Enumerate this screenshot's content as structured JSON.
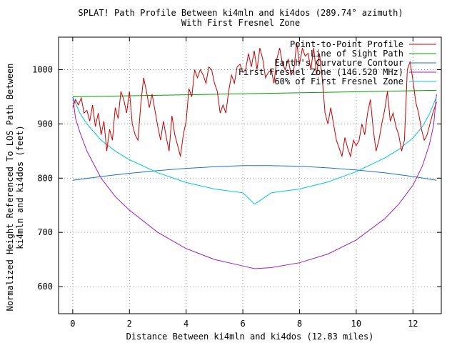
{
  "chart_data": {
    "type": "line",
    "title": "SPLAT! Path Profile Between ki4mln and ki4dos (289.74° azimuth)",
    "subtitle": "With First Fresnel Zone",
    "xlabel": "Distance Between ki4mln and ki4dos (12.83 miles)",
    "ylabel_line1": "Normalized Height Referenced To LOS Path Between",
    "ylabel_line2": "ki4mln and ki4dos (feet)",
    "xlim": [
      -0.5,
      13.0
    ],
    "ylim": [
      550,
      1060
    ],
    "xticks": [
      0,
      2,
      4,
      6,
      8,
      10,
      12
    ],
    "yticks": [
      600,
      700,
      800,
      900,
      1000
    ],
    "grid": true,
    "legend_position": "top-right",
    "series": [
      {
        "name": "Point-to-Point Profile",
        "color": "#cc0000",
        "x": [
          0,
          0.1,
          0.2,
          0.3,
          0.4,
          0.5,
          0.6,
          0.7,
          0.8,
          0.9,
          1.0,
          1.1,
          1.2,
          1.3,
          1.4,
          1.5,
          1.6,
          1.7,
          1.8,
          1.9,
          2.0,
          2.1,
          2.2,
          2.3,
          2.4,
          2.5,
          2.6,
          2.7,
          2.8,
          2.9,
          3.0,
          3.1,
          3.2,
          3.3,
          3.4,
          3.5,
          3.6,
          3.7,
          3.8,
          3.9,
          4.0,
          4.1,
          4.2,
          4.3,
          4.4,
          4.5,
          4.6,
          4.7,
          4.8,
          4.9,
          5.0,
          5.1,
          5.2,
          5.3,
          5.4,
          5.5,
          5.6,
          5.7,
          5.8,
          5.9,
          6.0,
          6.1,
          6.2,
          6.3,
          6.4,
          6.5,
          6.6,
          6.7,
          6.8,
          6.9,
          7.0,
          7.1,
          7.2,
          7.3,
          7.4,
          7.5,
          7.6,
          7.7,
          7.8,
          7.9,
          8.0,
          8.1,
          8.2,
          8.3,
          8.4,
          8.5,
          8.6,
          8.7,
          8.8,
          8.9,
          9.0,
          9.1,
          9.2,
          9.3,
          9.4,
          9.5,
          9.6,
          9.7,
          9.8,
          9.9,
          10.0,
          10.1,
          10.2,
          10.3,
          10.4,
          10.5,
          10.6,
          10.7,
          10.8,
          10.9,
          11.0,
          11.1,
          11.2,
          11.3,
          11.4,
          11.5,
          11.6,
          11.7,
          11.8,
          11.9,
          12.0,
          12.1,
          12.2,
          12.3,
          12.4,
          12.5,
          12.6,
          12.7,
          12.83
        ],
        "y": [
          930,
          945,
          935,
          948,
          920,
          925,
          905,
          935,
          895,
          920,
          880,
          905,
          850,
          890,
          870,
          930,
          910,
          960,
          945,
          920,
          960,
          900,
          880,
          870,
          935,
          985,
          960,
          930,
          955,
          925,
          895,
          870,
          905,
          875,
          850,
          915,
          880,
          860,
          840,
          880,
          905,
          965,
          950,
          1000,
          985,
          1000,
          990,
          975,
          1005,
          1000,
          975,
          960,
          920,
          935,
          920,
          960,
          990,
          975,
          1005,
          1010,
          995,
          1000,
          1030,
          1005,
          1035,
          1000,
          1040,
          1020,
          985,
          995,
          1000,
          975,
          1020,
          1040,
          1010,
          1000,
          1020,
          990,
          1000,
          1050,
          1010,
          1040,
          1025,
          1030,
          1000,
          1040,
          990,
          1030,
          985,
          920,
          900,
          930,
          900,
          870,
          855,
          840,
          875,
          855,
          840,
          870,
          860,
          870,
          900,
          880,
          920,
          945,
          890,
          850,
          870,
          900,
          925,
          960,
          905,
          920,
          895,
          880,
          850,
          870,
          1000,
          1015,
          980,
          940,
          920,
          890,
          870,
          880,
          900,
          920,
          940
        ]
      },
      {
        "name": "Line of Sight Path",
        "color": "#00a000",
        "x": [
          0,
          12.83
        ],
        "y": [
          950,
          962
        ]
      },
      {
        "name": "Earth's Curvature Contour",
        "color": "#1f6fd6",
        "x": [
          0,
          1,
          2,
          3,
          4,
          5,
          6,
          6.415,
          7,
          8,
          9,
          10,
          11,
          12,
          12.83
        ],
        "y": [
          796,
          803,
          809,
          814,
          818,
          821,
          823,
          823,
          823,
          822,
          819,
          815,
          810,
          803,
          796
        ]
      },
      {
        "name": "First Fresnel Zone (146.520 MHz)",
        "color": "#a020c0",
        "x": [
          0,
          0.1,
          0.25,
          0.5,
          1,
          1.5,
          2,
          3,
          4,
          5,
          6,
          6.415,
          7,
          8,
          9,
          10,
          11,
          11.5,
          12,
          12.33,
          12.58,
          12.73,
          12.83
        ],
        "y": [
          950,
          910,
          885,
          850,
          800,
          766,
          741,
          700,
          670,
          650,
          638,
          633,
          635,
          644,
          660,
          686,
          725,
          752,
          787,
          822,
          862,
          898,
          955
        ]
      },
      {
        "name": "60% of First Fresnel Zone",
        "color": "#00c8d8",
        "x": [
          0,
          0.25,
          0.5,
          1,
          1.5,
          2,
          3,
          4,
          5,
          6,
          6.415,
          7,
          8,
          9,
          10,
          11,
          11.5,
          12,
          12.33,
          12.58,
          12.83
        ],
        "y": [
          950,
          920,
          900,
          870,
          850,
          834,
          810,
          792,
          780,
          773,
          752,
          773,
          780,
          793,
          812,
          837,
          853,
          874,
          895,
          918,
          950
        ]
      }
    ]
  }
}
